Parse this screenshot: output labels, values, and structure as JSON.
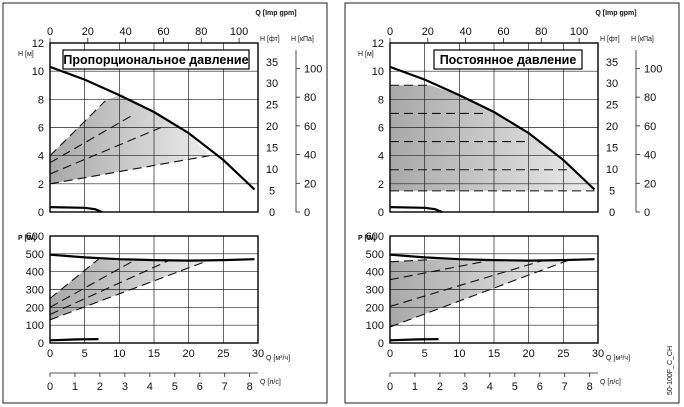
{
  "footer_code": "50-100F_C_CH",
  "axis_units": {
    "h_m": "H [м]",
    "h_ft": "H [фт]",
    "h_kpa": "H [кПа]",
    "q_imp": "Q [Imp gpm]",
    "p_w": "P [W]",
    "q_m3h": "Q [м³/ч]",
    "q_ls": "Q [л/с]"
  },
  "ticks": {
    "h_m": [
      "0",
      "2",
      "4",
      "6",
      "8",
      "10",
      "12"
    ],
    "h_ft": [
      "0",
      "5",
      "10",
      "15",
      "20",
      "25",
      "30",
      "35"
    ],
    "h_kpa": [
      "0",
      "20",
      "40",
      "60",
      "80",
      "100"
    ],
    "q_imp": [
      "0",
      "20",
      "40",
      "60",
      "80",
      "100"
    ],
    "p_w": [
      "0",
      "100",
      "200",
      "300",
      "400",
      "500",
      "600"
    ],
    "q_m3h": [
      "0",
      "5",
      "10",
      "15",
      "20",
      "25",
      "30"
    ],
    "q_ls": [
      "0",
      "1",
      "2",
      "3",
      "4",
      "5",
      "6",
      "7",
      "8"
    ]
  },
  "chart_data": [
    {
      "type": "line",
      "title": "Пропорциональное давление",
      "xlabel": "Q [м³/ч]",
      "ylabel": "H [м]",
      "xlim": [
        0,
        30
      ],
      "ylim": [
        0,
        12
      ],
      "grid": true,
      "max_curve": [
        [
          0,
          10.3
        ],
        [
          5,
          9.4
        ],
        [
          10,
          8.3
        ],
        [
          15,
          7.1
        ],
        [
          20,
          5.6
        ],
        [
          25,
          3.7
        ],
        [
          29.5,
          1.6
        ]
      ],
      "min_curve": [
        [
          0,
          0.35
        ],
        [
          5,
          0.3
        ],
        [
          6.5,
          0.2
        ],
        [
          7.5,
          0
        ]
      ],
      "control_curves": [
        {
          "start": [
            0,
            4.0
          ],
          "end": [
            8,
            7.9
          ]
        },
        {
          "start": [
            0,
            3.5
          ],
          "end": [
            12,
            6.9
          ]
        },
        {
          "start": [
            0,
            2.7
          ],
          "end": [
            16,
            6.0
          ]
        },
        {
          "start": [
            0,
            2.0
          ],
          "end": [
            23,
            4.0
          ]
        }
      ],
      "shaded_region": [
        [
          0,
          4.0
        ],
        [
          8,
          7.9
        ],
        [
          10,
          8.3
        ],
        [
          15,
          7.1
        ],
        [
          20,
          5.6
        ],
        [
          23,
          4.0
        ],
        [
          0,
          2.0
        ]
      ]
    },
    {
      "type": "line",
      "title": "",
      "xlabel": "Q [м³/ч]",
      "ylabel": "P [W]",
      "xlim": [
        0,
        30
      ],
      "ylim": [
        0,
        600
      ],
      "grid": true,
      "max_curve": [
        [
          0,
          495
        ],
        [
          5,
          480
        ],
        [
          10,
          470
        ],
        [
          15,
          465
        ],
        [
          20,
          462
        ],
        [
          25,
          465
        ],
        [
          29.5,
          470
        ]
      ],
      "min_curve": [
        [
          0,
          15
        ],
        [
          4,
          20
        ],
        [
          7,
          22
        ]
      ],
      "control_curves": [
        {
          "start": [
            0,
            250
          ],
          "end": [
            7,
            470
          ]
        },
        {
          "start": [
            0,
            200
          ],
          "end": [
            12,
            460
          ]
        },
        {
          "start": [
            0,
            160
          ],
          "end": [
            17,
            460
          ]
        },
        {
          "start": [
            0,
            130
          ],
          "end": [
            23,
            465
          ]
        }
      ]
    },
    {
      "type": "line",
      "title": "Постоянное давление",
      "xlabel": "Q [м³/ч]",
      "ylabel": "H [м]",
      "xlim": [
        0,
        30
      ],
      "ylim": [
        0,
        12
      ],
      "grid": true,
      "max_curve": [
        [
          0,
          10.3
        ],
        [
          5,
          9.4
        ],
        [
          10,
          8.3
        ],
        [
          15,
          7.1
        ],
        [
          20,
          5.6
        ],
        [
          25,
          3.7
        ],
        [
          29.5,
          1.6
        ]
      ],
      "min_curve": [
        [
          0,
          0.35
        ],
        [
          5,
          0.3
        ],
        [
          6.5,
          0.2
        ],
        [
          7.5,
          0
        ]
      ],
      "control_curves": [
        {
          "start": [
            0,
            9.0
          ],
          "end": [
            5.8,
            9.0
          ]
        },
        {
          "start": [
            0,
            7.0
          ],
          "end": [
            13.5,
            7.0
          ]
        },
        {
          "start": [
            0,
            5.0
          ],
          "end": [
            20,
            5.0
          ]
        },
        {
          "start": [
            0,
            3.0
          ],
          "end": [
            25.5,
            3.0
          ]
        },
        {
          "start": [
            0,
            1.5
          ],
          "end": [
            29.5,
            1.5
          ]
        }
      ],
      "shaded_region": [
        [
          0,
          9.0
        ],
        [
          5.8,
          9.0
        ],
        [
          10,
          8.3
        ],
        [
          15,
          7.1
        ],
        [
          20,
          5.6
        ],
        [
          25,
          3.7
        ],
        [
          29.5,
          1.5
        ],
        [
          0,
          1.5
        ]
      ]
    },
    {
      "type": "line",
      "title": "",
      "xlabel": "Q [м³/ч]",
      "ylabel": "P [W]",
      "xlim": [
        0,
        30
      ],
      "ylim": [
        0,
        600
      ],
      "grid": true,
      "max_curve": [
        [
          0,
          495
        ],
        [
          5,
          480
        ],
        [
          10,
          470
        ],
        [
          15,
          465
        ],
        [
          20,
          462
        ],
        [
          25,
          465
        ],
        [
          29.5,
          470
        ]
      ],
      "min_curve": [
        [
          0,
          15
        ],
        [
          4,
          20
        ],
        [
          7,
          22
        ]
      ],
      "control_curves": [
        {
          "start": [
            0,
            455
          ],
          "end": [
            6,
            468
          ]
        },
        {
          "start": [
            0,
            355
          ],
          "end": [
            14,
            460
          ]
        },
        {
          "start": [
            0,
            205
          ],
          "end": [
            22,
            462
          ]
        },
        {
          "start": [
            0,
            90
          ],
          "end": [
            26,
            468
          ]
        }
      ]
    }
  ]
}
